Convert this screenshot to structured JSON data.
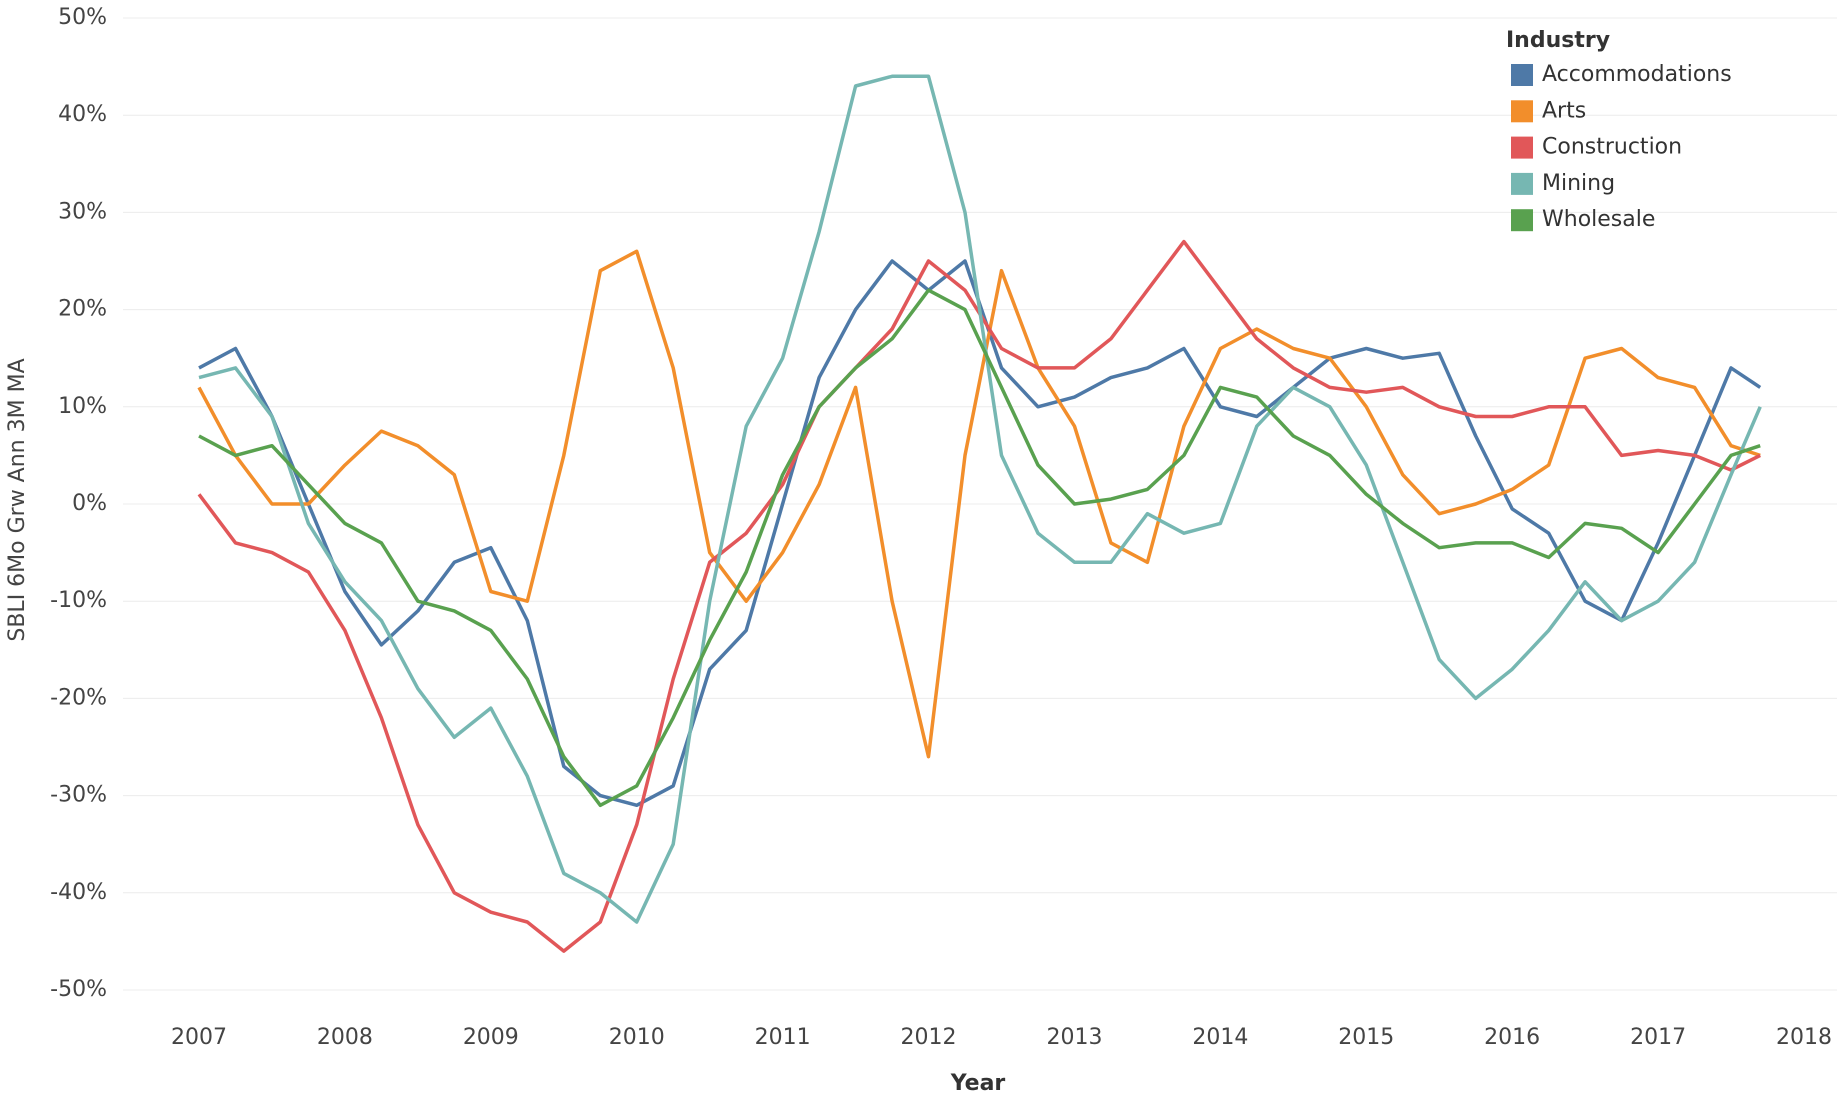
{
  "chart_data": {
    "type": "line",
    "x_label": "Year",
    "y_label": "SBLI 6Mo Grw Ann 3M MA",
    "legend_title": "Industry",
    "legend": "top-right",
    "grid": true,
    "x": [
      2007,
      2007.25,
      2007.5,
      2007.75,
      2008,
      2008.25,
      2008.5,
      2008.75,
      2009,
      2009.25,
      2009.5,
      2009.75,
      2010,
      2010.25,
      2010.5,
      2010.75,
      2011,
      2011.25,
      2011.5,
      2011.75,
      2012,
      2012.25,
      2012.5,
      2012.75,
      2013,
      2013.25,
      2013.5,
      2013.75,
      2014,
      2014.25,
      2014.5,
      2014.75,
      2015,
      2015.25,
      2015.5,
      2015.75,
      2016,
      2016.25,
      2016.5,
      2016.75,
      2017,
      2017.25,
      2017.5,
      2017.7
    ],
    "series": [
      {
        "name": "Accommodations",
        "color": "#4e79a7",
        "values": [
          14,
          16,
          9,
          0,
          -9,
          -14.5,
          -11,
          -6,
          -4.5,
          -12,
          -27,
          -30,
          -31,
          -29,
          -17,
          -13,
          0,
          13,
          20,
          25,
          22,
          25,
          14,
          10,
          11,
          13,
          14,
          16,
          10,
          9,
          12,
          15,
          16,
          15,
          15.5,
          7,
          -0.5,
          -3,
          -10,
          -12,
          -4,
          5,
          14,
          12
        ]
      },
      {
        "name": "Arts",
        "color": "#f28e2b",
        "values": [
          12,
          5,
          0,
          0,
          4,
          7.5,
          6,
          3,
          -9,
          -10,
          5,
          24,
          26,
          14,
          -5,
          -10,
          -5,
          2,
          12,
          -10,
          -26,
          5,
          24,
          14,
          8,
          -4,
          -6,
          8,
          16,
          18,
          16,
          15,
          10,
          3,
          -1,
          0,
          1.5,
          4,
          15,
          16,
          13,
          12,
          6,
          5
        ]
      },
      {
        "name": "Construction",
        "color": "#e15759",
        "values": [
          1,
          -4,
          -5,
          -7,
          -13,
          -22,
          -33,
          -40,
          -42,
          -43,
          -46,
          -43,
          -33,
          -18,
          -6,
          -3,
          2,
          10,
          14,
          18,
          25,
          22,
          16,
          14,
          14,
          17,
          22,
          27,
          22,
          17,
          14,
          12,
          11.5,
          12,
          10,
          9,
          9,
          10,
          10,
          5,
          5.5,
          5,
          3.5,
          5
        ]
      },
      {
        "name": "Mining",
        "color": "#76b7b2",
        "values": [
          13,
          14,
          9,
          -2,
          -8,
          -12,
          -19,
          -24,
          -21,
          -28,
          -38,
          -40,
          -43,
          -35,
          -10,
          8,
          15,
          28,
          43,
          44,
          44,
          30,
          5,
          -3,
          -6,
          -6,
          -1,
          -3,
          -2,
          8,
          12,
          10,
          4,
          -6,
          -16,
          -20,
          -17,
          -13,
          -8,
          -12,
          -10,
          -6,
          3,
          10
        ]
      },
      {
        "name": "Wholesale",
        "color": "#59a14f",
        "values": [
          7,
          5,
          6,
          2,
          -2,
          -4,
          -10,
          -11,
          -13,
          -18,
          -26,
          -31,
          -29,
          -22,
          -14,
          -7,
          3,
          10,
          14,
          17,
          22,
          20,
          12,
          4,
          0,
          0.5,
          1.5,
          5,
          12,
          11,
          7,
          5,
          1,
          -2,
          -4.5,
          -4,
          -4,
          -5.5,
          -2,
          -2.5,
          -5,
          0,
          5,
          6
        ]
      }
    ],
    "xlim": [
      2007,
      2018
    ],
    "xticks": [
      2007,
      2008,
      2009,
      2010,
      2011,
      2012,
      2013,
      2014,
      2015,
      2016,
      2017,
      2018
    ],
    "ylim": [
      -50,
      50
    ],
    "yticks": [
      {
        "value": 50,
        "label": "50%"
      },
      {
        "value": 40,
        "label": "40%"
      },
      {
        "value": 30,
        "label": "30%"
      },
      {
        "value": 20,
        "label": "20%"
      },
      {
        "value": 10,
        "label": "10%"
      },
      {
        "value": 0,
        "label": "0%"
      },
      {
        "value": -10,
        "label": "-10%"
      },
      {
        "value": -20,
        "label": "-20%"
      },
      {
        "value": -30,
        "label": "-30%"
      },
      {
        "value": -40,
        "label": "-40%"
      },
      {
        "value": -50,
        "label": "-50%"
      }
    ]
  }
}
